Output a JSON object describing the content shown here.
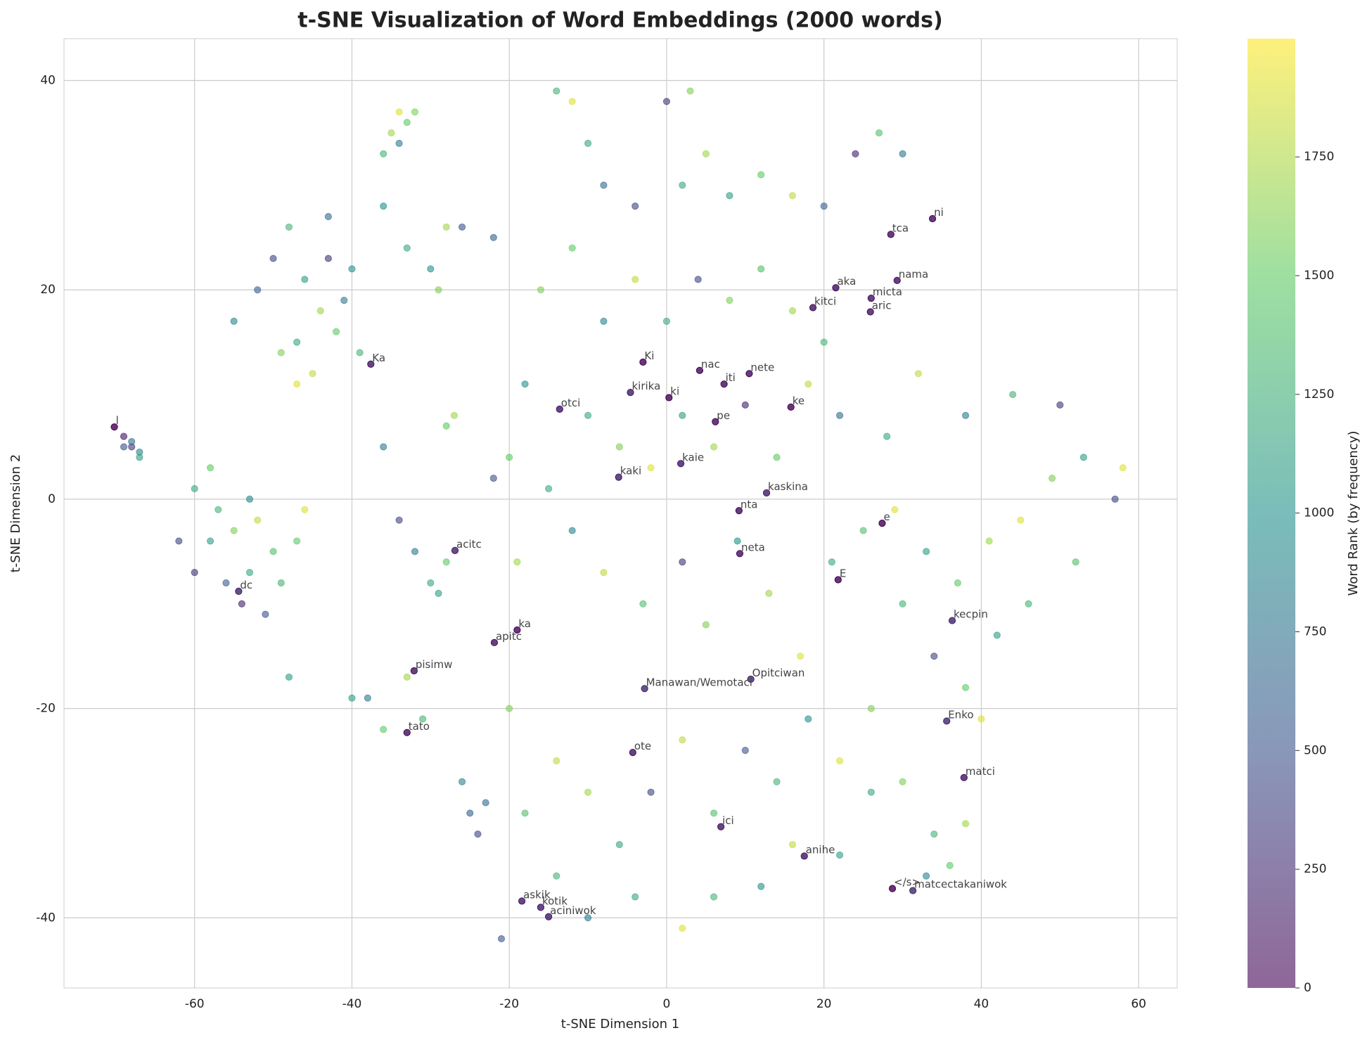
{
  "chart_data": {
    "type": "scatter",
    "title": "t-SNE Visualization of Word Embeddings (2000 words)",
    "x_label": "t-SNE Dimension 1",
    "y_label": "t-SNE Dimension 2",
    "colorbar_label": "Word Rank (by frequency)",
    "colormap": "viridis",
    "alpha": 0.6,
    "xlim": [
      -76.6,
      64.9
    ],
    "ylim": [
      -46.7,
      44.0
    ],
    "xticks": [
      -60,
      -40,
      -20,
      0,
      20,
      40,
      60
    ],
    "yticks": [
      -40,
      -20,
      0,
      20,
      40
    ],
    "clim": [
      0,
      1999
    ],
    "cticks": [
      0,
      250,
      500,
      750,
      1000,
      1250,
      1500,
      1750
    ],
    "grid": true,
    "x": [
      -69,
      -68,
      -67,
      -68,
      -67,
      -69,
      -60,
      -58,
      -57,
      -55,
      -53,
      -52,
      -50,
      -62,
      -60,
      -56,
      -54,
      -51,
      -47,
      -46,
      -49,
      -58,
      -53,
      -50,
      -48,
      -46,
      -44,
      -42,
      -47,
      -43,
      -40,
      -45,
      -41,
      -49,
      -52,
      -55,
      -39,
      -43,
      -47,
      -35,
      -34,
      -36,
      -33,
      -34,
      -32,
      -28,
      -26,
      -22,
      -30,
      -33,
      -29,
      -14,
      -12,
      -10,
      -8,
      -4,
      0,
      2,
      5,
      8,
      12,
      16,
      20,
      24,
      27,
      30,
      3,
      -18,
      -16,
      -12,
      -8,
      -4,
      0,
      4,
      8,
      12,
      16,
      20,
      -10,
      -6,
      -2,
      2,
      6,
      10,
      14,
      18,
      22,
      -20,
      -15,
      -22,
      -19,
      -12,
      -8,
      -3,
      2,
      5,
      9,
      13,
      17,
      21,
      25,
      29,
      33,
      37,
      41,
      45,
      49,
      53,
      57,
      58,
      50,
      44,
      38,
      32,
      28,
      42,
      38,
      34,
      30,
      26,
      22,
      18,
      14,
      10,
      6,
      2,
      -2,
      -6,
      -10,
      -14,
      -18,
      -20,
      -14,
      -10,
      -4,
      2,
      6,
      12,
      16,
      22,
      34,
      36,
      38,
      33,
      30,
      26,
      40,
      46,
      52,
      -25,
      -26,
      -24,
      -23,
      -30,
      -28,
      -32,
      -29,
      -38,
      -36,
      -40,
      -33,
      -31,
      -21,
      -27,
      -28,
      -36,
      -34,
      -48,
      -36
    ],
    "y": [
      6,
      5,
      4.5,
      5.5,
      4,
      5,
      1,
      3,
      -1,
      -3,
      0,
      -2,
      -5,
      -4,
      -7,
      -8,
      -10,
      -11,
      -4,
      -1,
      -8,
      -4,
      -7,
      23,
      26,
      21,
      18,
      16,
      15,
      27,
      22,
      12,
      19,
      14,
      20,
      17,
      14,
      23,
      11,
      35,
      37,
      33,
      36,
      34,
      37,
      26,
      26,
      25,
      22,
      24,
      20,
      39,
      38,
      34,
      30,
      28,
      38,
      30,
      33,
      29,
      31,
      29,
      28,
      33,
      35,
      33,
      39,
      11,
      20,
      24,
      17,
      21,
      17,
      21,
      19,
      22,
      18,
      15,
      8,
      5,
      3,
      8,
      5,
      9,
      4,
      11,
      8,
      4,
      1,
      2,
      -6,
      -3,
      -7,
      -10,
      -6,
      -12,
      -4,
      -9,
      -15,
      -6,
      -3,
      -1,
      -5,
      -8,
      -4,
      -2,
      2,
      4,
      0,
      3,
      9,
      10,
      8,
      12,
      6,
      -13,
      -18,
      -15,
      -10,
      -20,
      -25,
      -21,
      -27,
      -24,
      -30,
      -23,
      -28,
      -33,
      -28,
      -25,
      -30,
      -20,
      -36,
      -40,
      -38,
      -41,
      -38,
      -37,
      -33,
      -34,
      -32,
      -35,
      -31,
      -36,
      -27,
      -28,
      -21,
      -10,
      -6,
      -30,
      -27,
      -32,
      -29,
      -8,
      -6,
      -5,
      -9,
      -19,
      -22,
      -19,
      -17,
      -21,
      -42,
      8,
      7,
      5,
      -2,
      -17,
      28
    ],
    "rank": [
      100,
      300,
      900,
      700,
      1100,
      500,
      1200,
      1500,
      1300,
      1600,
      900,
      1800,
      1400,
      400,
      300,
      600,
      200,
      500,
      1500,
      1900,
      1300,
      1100,
      1200,
      400,
      1300,
      1100,
      1700,
      1500,
      1200,
      700,
      1000,
      1800,
      800,
      1600,
      600,
      900,
      1300,
      300,
      1900,
      1700,
      1900,
      1300,
      1500,
      800,
      1600,
      1700,
      500,
      600,
      1000,
      1200,
      1600,
      1300,
      1900,
      1200,
      700,
      400,
      300,
      1200,
      1700,
      1100,
      1500,
      1800,
      600,
      200,
      1400,
      800,
      1600,
      1000,
      1600,
      1500,
      900,
      1800,
      1200,
      400,
      1600,
      1400,
      1700,
      1300,
      1200,
      1600,
      1900,
      1100,
      1700,
      200,
      1500,
      1800,
      700,
      1500,
      1200,
      500,
      1700,
      900,
      1800,
      1400,
      300,
      1600,
      1000,
      1700,
      1900,
      1200,
      1400,
      1900,
      1100,
      1500,
      1700,
      1900,
      1600,
      1100,
      400,
      1900,
      300,
      1300,
      800,
      1800,
      1200,
      1100,
      1500,
      400,
      1300,
      1600,
      1900,
      1000,
      1300,
      500,
      1400,
      1800,
      400,
      1200,
      1700,
      1800,
      1400,
      1600,
      1300,
      800,
      1200,
      1900,
      1300,
      1000,
      1800,
      1100,
      1300,
      1500,
      1700,
      900,
      1600,
      1200,
      1900,
      1300,
      1400,
      600,
      900,
      400,
      700,
      1200,
      1500,
      800,
      1100,
      800,
      1500,
      1100,
      1700,
      1300,
      500,
      1700,
      1500,
      800,
      400,
      1100,
      1000
    ],
    "labeled_words": {
      "labels": [
        "ni",
        "tca",
        "nama",
        "aka",
        "micta",
        "kitci",
        "aric",
        "Ka",
        "Ki",
        "nac",
        "nete",
        "iti",
        "kirika",
        "ki",
        "ke",
        "otci",
        "pe",
        "kaie",
        "kaki",
        "kaskina",
        "nta",
        "e",
        "acitc",
        "neta",
        "E",
        "dc",
        "kecpin",
        "ka",
        "apitc",
        "pisimw",
        "Opitciwan",
        "Manawan/Wemotaci",
        "Enko",
        "tato",
        "ote",
        "matci",
        "ici",
        "anihe",
        "</s>",
        "matcectakaniwok",
        "askik",
        "kotik",
        "aciniwok",
        "l"
      ],
      "x": [
        33.8,
        28.5,
        29.3,
        21.5,
        26.0,
        18.6,
        25.9,
        -37.6,
        -3.0,
        4.2,
        10.5,
        7.3,
        -4.6,
        0.3,
        15.8,
        -13.6,
        6.2,
        1.8,
        -6.1,
        12.7,
        9.2,
        27.4,
        -26.9,
        9.3,
        21.8,
        -54.4,
        36.3,
        -19.0,
        -21.9,
        -32.1,
        10.7,
        -2.8,
        35.6,
        -33.0,
        -4.3,
        37.8,
        6.9,
        17.5,
        28.7,
        31.3,
        -18.4,
        -16.0,
        -15.0,
        -70.2
      ],
      "y": [
        26.8,
        25.3,
        20.9,
        20.2,
        19.2,
        18.3,
        17.9,
        12.9,
        13.1,
        12.3,
        12.0,
        11.0,
        10.2,
        9.7,
        8.8,
        8.6,
        7.4,
        3.4,
        2.1,
        0.6,
        -1.1,
        -2.3,
        -4.9,
        -5.2,
        -7.7,
        -8.8,
        -11.6,
        -12.5,
        -13.7,
        -16.4,
        -17.2,
        -18.1,
        -21.2,
        -22.3,
        -24.2,
        -26.6,
        -31.3,
        -34.1,
        -37.2,
        -37.4,
        -38.4,
        -39.0,
        -39.9,
        6.9
      ],
      "rank": [
        40,
        60,
        80,
        70,
        90,
        100,
        110,
        120,
        5,
        30,
        50,
        45,
        150,
        8,
        25,
        130,
        35,
        140,
        160,
        170,
        55,
        2,
        180,
        65,
        3,
        190,
        200,
        20,
        85,
        95,
        210,
        220,
        230,
        75,
        105,
        115,
        125,
        135,
        0,
        240,
        145,
        155,
        165,
        1
      ]
    }
  }
}
